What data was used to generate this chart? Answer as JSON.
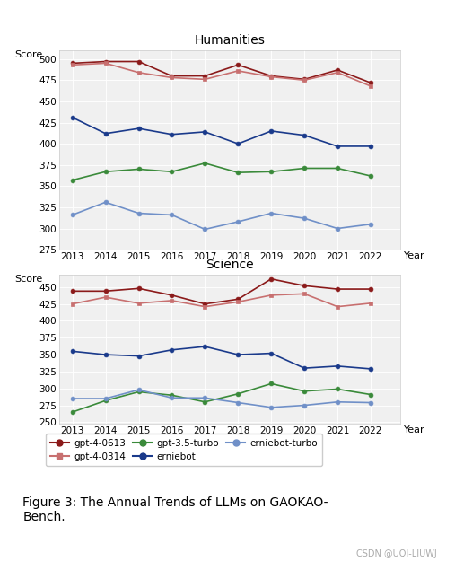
{
  "years": [
    2013,
    2014,
    2015,
    2016,
    2017,
    2018,
    2019,
    2020,
    2021,
    2022
  ],
  "humanities": {
    "gpt4_0613": [
      495,
      497,
      497,
      480,
      480,
      493,
      480,
      476,
      487,
      472
    ],
    "gpt4_0314": [
      493,
      495,
      484,
      478,
      476,
      486,
      479,
      475,
      484,
      468
    ],
    "gpt35_turbo": [
      357,
      367,
      370,
      367,
      377,
      366,
      367,
      371,
      371,
      362
    ],
    "erniebot": [
      431,
      412,
      418,
      411,
      414,
      400,
      415,
      410,
      397,
      397
    ],
    "erniebot_turbo": [
      316,
      331,
      318,
      316,
      299,
      308,
      318,
      312,
      300,
      305
    ]
  },
  "science": {
    "gpt4_0613": [
      444,
      444,
      448,
      438,
      425,
      432,
      462,
      452,
      447,
      447
    ],
    "gpt4_0314": [
      425,
      435,
      426,
      430,
      421,
      428,
      438,
      440,
      421,
      426
    ],
    "gpt35_turbo": [
      265,
      282,
      295,
      290,
      280,
      292,
      307,
      296,
      299,
      291
    ],
    "erniebot": [
      355,
      350,
      348,
      357,
      362,
      350,
      352,
      330,
      333,
      329
    ],
    "erniebot_turbo": [
      285,
      285,
      298,
      286,
      286,
      279,
      272,
      275,
      280,
      279
    ]
  },
  "colors": {
    "gpt4_0613": "#8b1a1a",
    "gpt4_0314": "#c87070",
    "gpt35_turbo": "#3a8a3a",
    "erniebot": "#1a3a8b",
    "erniebot_turbo": "#7090c8"
  },
  "markers": {
    "gpt4_0613": "o",
    "gpt4_0314": "s",
    "gpt35_turbo": "o",
    "erniebot": "o",
    "erniebot_turbo": "o"
  },
  "legend_labels": {
    "gpt4_0613": "gpt-4-0613",
    "gpt4_0314": "gpt-4-0314",
    "gpt35_turbo": "gpt-3.5-turbo",
    "erniebot": "erniebot",
    "erniebot_turbo": "erniebot-turbo"
  },
  "title_humanities": "Humanities",
  "title_science": "Science",
  "ylabel": "Score",
  "xlabel": "Year",
  "figure_caption": "Figure 3: The Annual Trends of LLMs on GAOKAO-\nBench.",
  "watermark": "CSDN @UQI-LIUWJ",
  "hum_ylim": [
    275,
    510
  ],
  "sci_ylim": [
    248,
    468
  ],
  "hum_yticks": [
    275,
    300,
    325,
    350,
    375,
    400,
    425,
    450,
    475,
    500
  ],
  "sci_yticks": [
    250,
    275,
    300,
    325,
    350,
    375,
    400,
    425,
    450
  ]
}
